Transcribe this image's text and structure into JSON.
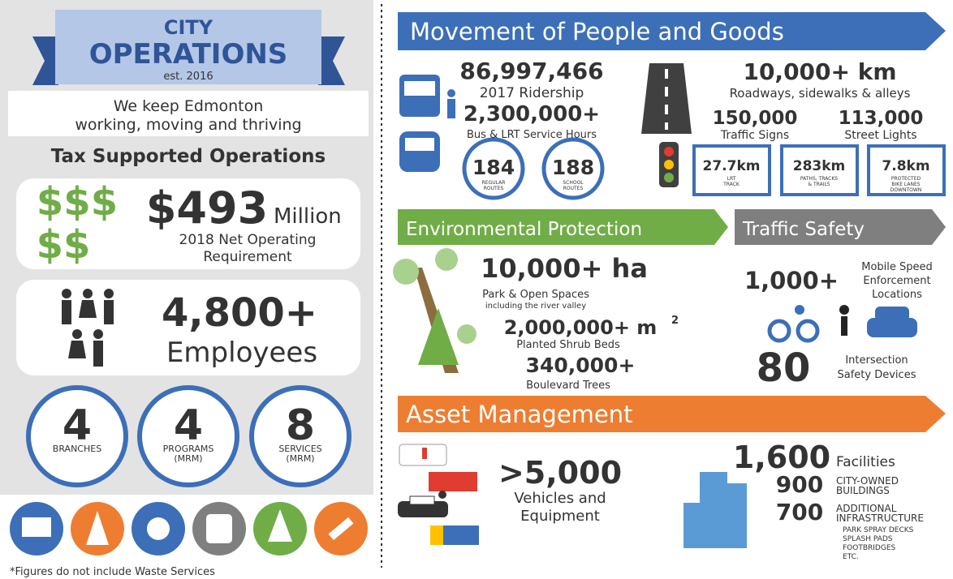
{
  "left": {
    "header": {
      "title_line1": "CITY",
      "title_line2": "OPERATIONS",
      "established": "est. 2016"
    },
    "tagline": [
      "We keep Edmonton",
      "working, moving and thriving"
    ],
    "tax": {
      "title": "Tax Supported Operations",
      "symbols": [
        "$$$",
        "$$"
      ],
      "amount": "$493",
      "unit": "Million",
      "caption": [
        "2018 Net Operating",
        "Requirement"
      ]
    },
    "employees": {
      "count": "4,800+",
      "label": "Employees"
    },
    "circles": [
      {
        "value": "4",
        "label": [
          "BRANCHES"
        ]
      },
      {
        "value": "4",
        "label": [
          "PROGRAMS",
          "(MRM)"
        ]
      },
      {
        "value": "8",
        "label": [
          "SERVICES",
          "(MRM)"
        ]
      }
    ],
    "footnote": "*Figures do not include Waste Services"
  },
  "movement": {
    "title": "Movement of People and Goods",
    "ridership": "86,997,466",
    "ridership_label": "2017 Ridership",
    "service_hours": "2,300,000+",
    "service_hours_label": "Bus & LRT Service Hours",
    "routes": [
      {
        "value": "184",
        "label": [
          "REGULAR",
          "ROUTES"
        ]
      },
      {
        "value": "188",
        "label": [
          "SCHOOL",
          "ROUTES"
        ]
      }
    ],
    "roadways": "10,000+ km",
    "roadways_label": "Roadways, sidewalks & alleys",
    "signs": "150,000",
    "signs_label": "Traffic Signs",
    "lights": "113,000",
    "lights_label": "Street Lights",
    "boxes": [
      {
        "value": "27.7km",
        "label": [
          "LRT",
          "TRACK"
        ]
      },
      {
        "value": "283km",
        "label": [
          "PATHS, TRACKS",
          "& TRAILS"
        ]
      },
      {
        "value": "7.8km",
        "label": [
          "PROTECTED",
          "BIKE LANES",
          "DOWNTOWN"
        ]
      }
    ]
  },
  "environment": {
    "title": "Environmental Protection",
    "park": "10,000+ ha",
    "park_label": "Park & Open Spaces",
    "park_note": "including the river valley",
    "shrub": "2,000,000+ m",
    "shrub_sup": "2",
    "shrub_label": "Planted Shrub Beds",
    "trees": "340,000+",
    "trees_label": "Boulevard Trees"
  },
  "safety": {
    "title": "Traffic Safety",
    "speed": "1,000+",
    "speed_label": [
      "Mobile Speed",
      "Enforcement",
      "Locations"
    ],
    "devices": "80",
    "devices_label": [
      "Intersection",
      "Safety Devices"
    ]
  },
  "assets": {
    "title": "Asset Management",
    "vehicles": ">5,000",
    "vehicles_label": [
      "Vehicles and",
      "Equipment"
    ],
    "facilities": "1,600",
    "facilities_label": "Facilities",
    "city": "900",
    "city_label": [
      "CITY-OWNED",
      "BUILDINGS"
    ],
    "infra": "700",
    "infra_label": [
      "ADDITIONAL",
      "INFRASTRUCTURE"
    ],
    "infra_examples": [
      "PARK SPRAY DECKS",
      "SPLASH PADS",
      "FOOTBRIDGES",
      "ETC."
    ]
  }
}
